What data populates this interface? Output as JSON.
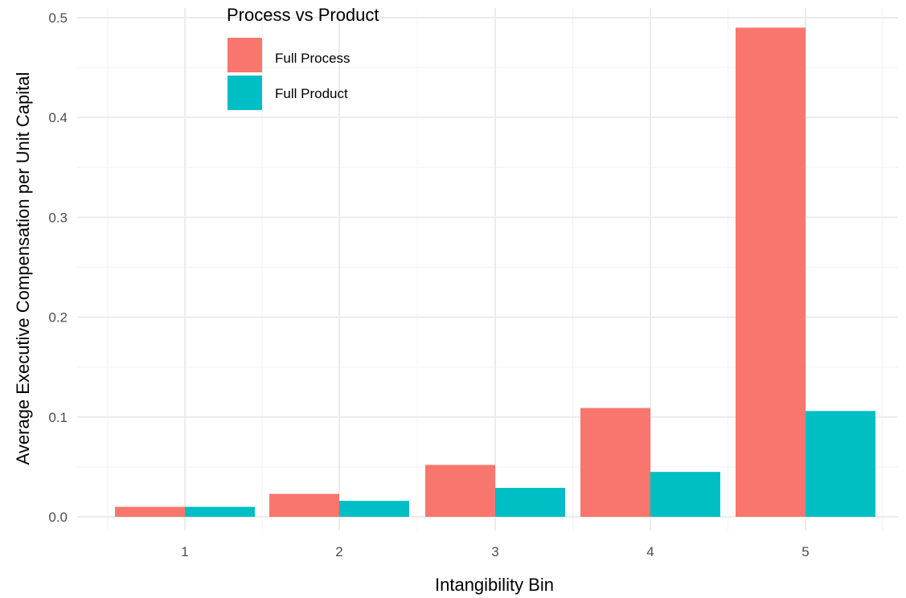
{
  "chart_data": {
    "type": "bar",
    "categories": [
      "1",
      "2",
      "3",
      "4",
      "5"
    ],
    "series": [
      {
        "name": "Full Process",
        "color": "#F8766D",
        "values": [
          0.01,
          0.023,
          0.052,
          0.109,
          0.49
        ]
      },
      {
        "name": "Full Product",
        "color": "#00BFC4",
        "values": [
          0.01,
          0.016,
          0.029,
          0.045,
          0.106
        ]
      }
    ],
    "title": "",
    "xlabel": "Intangibility Bin",
    "ylabel": "Average Executive Compensation per Unit Capital",
    "ylim": [
      0,
      0.5
    ],
    "yticks": [
      "0.0",
      "0.1",
      "0.2",
      "0.3",
      "0.4",
      "0.5"
    ],
    "legend": {
      "title": "Process vs Product",
      "position": "top-left"
    },
    "grid": true
  }
}
